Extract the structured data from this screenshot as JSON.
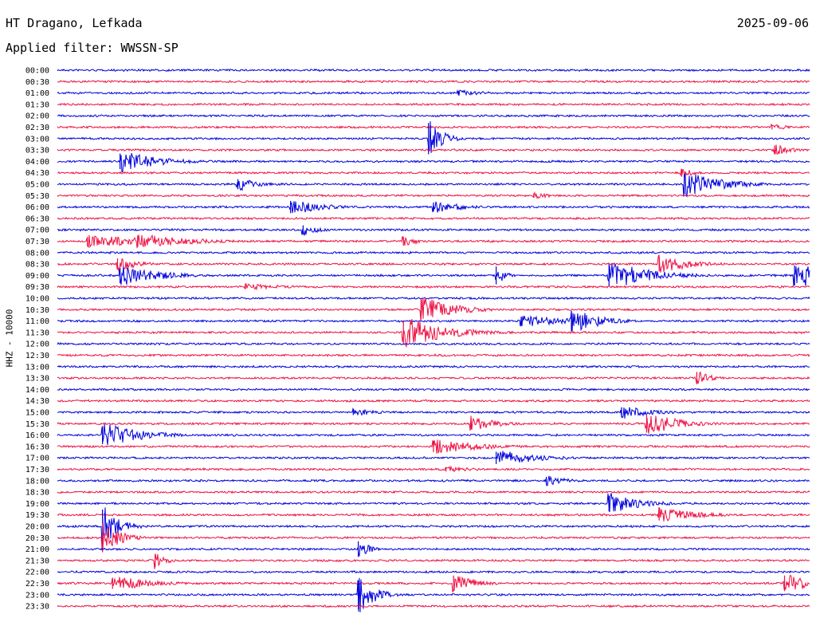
{
  "header": {
    "station": "HT Dragano, Lefkada",
    "date": "2025-09-06",
    "filter": "Applied filter: WWSSN-SP"
  },
  "chart_data": {
    "type": "line",
    "ylabel": "HHZ - 10000",
    "colors": {
      "even": "#0000dd",
      "odd": "#ee1144"
    },
    "rows": [
      "00:00",
      "00:30",
      "01:00",
      "01:30",
      "02:00",
      "02:30",
      "03:00",
      "03:30",
      "04:00",
      "04:30",
      "05:00",
      "05:30",
      "06:00",
      "06:30",
      "07:00",
      "07:30",
      "08:00",
      "08:30",
      "09:00",
      "09:30",
      "10:00",
      "10:30",
      "11:00",
      "11:30",
      "12:00",
      "12:30",
      "13:00",
      "13:30",
      "14:00",
      "14:30",
      "15:00",
      "15:30",
      "16:00",
      "16:30",
      "17:00",
      "17:30",
      "18:00",
      "18:30",
      "19:00",
      "19:30",
      "20:00",
      "20:30",
      "21:00",
      "21:30",
      "22:00",
      "22:30",
      "23:00",
      "23:30"
    ],
    "x_range_minutes": [
      0,
      30
    ],
    "events": [
      {
        "row": "01:00",
        "t": 16.0,
        "amp": 4,
        "dur": 1.2
      },
      {
        "row": "02:30",
        "t": 28.5,
        "amp": 4,
        "dur": 0.8
      },
      {
        "row": "03:00",
        "t": 14.8,
        "amp": 28,
        "dur": 0.5
      },
      {
        "row": "03:30",
        "t": 28.6,
        "amp": 8,
        "dur": 0.6
      },
      {
        "row": "04:00",
        "t": 2.5,
        "amp": 14,
        "dur": 1.5
      },
      {
        "row": "04:30",
        "t": 24.9,
        "amp": 7,
        "dur": 0.5
      },
      {
        "row": "05:00",
        "t": 7.2,
        "amp": 9,
        "dur": 0.8
      },
      {
        "row": "05:00",
        "t": 25.0,
        "amp": 18,
        "dur": 1.4
      },
      {
        "row": "05:30",
        "t": 19.0,
        "amp": 4,
        "dur": 0.8
      },
      {
        "row": "06:00",
        "t": 9.3,
        "amp": 11,
        "dur": 1.2
      },
      {
        "row": "06:00",
        "t": 15.0,
        "amp": 8,
        "dur": 1.2
      },
      {
        "row": "07:00",
        "t": 9.8,
        "amp": 8,
        "dur": 0.6
      },
      {
        "row": "07:30",
        "t": 1.2,
        "amp": 8,
        "dur": 3.0
      },
      {
        "row": "07:30",
        "t": 3.2,
        "amp": 10,
        "dur": 2.0
      },
      {
        "row": "07:30",
        "t": 13.8,
        "amp": 8,
        "dur": 0.5
      },
      {
        "row": "08:30",
        "t": 2.4,
        "amp": 10,
        "dur": 0.8
      },
      {
        "row": "08:30",
        "t": 24.0,
        "amp": 13,
        "dur": 1.2
      },
      {
        "row": "09:00",
        "t": 2.5,
        "amp": 14,
        "dur": 1.5
      },
      {
        "row": "09:00",
        "t": 17.5,
        "amp": 16,
        "dur": 0.3
      },
      {
        "row": "09:00",
        "t": 22.0,
        "amp": 20,
        "dur": 1.5
      },
      {
        "row": "09:00",
        "t": 29.4,
        "amp": 18,
        "dur": 1.5
      },
      {
        "row": "09:30",
        "t": 7.5,
        "amp": 4,
        "dur": 2.0
      },
      {
        "row": "10:30",
        "t": 14.5,
        "amp": 18,
        "dur": 1.2
      },
      {
        "row": "11:00",
        "t": 18.5,
        "amp": 8,
        "dur": 2.0
      },
      {
        "row": "11:00",
        "t": 20.5,
        "amp": 18,
        "dur": 1.0
      },
      {
        "row": "11:30",
        "t": 13.8,
        "amp": 22,
        "dur": 1.5
      },
      {
        "row": "13:30",
        "t": 25.5,
        "amp": 11,
        "dur": 0.5
      },
      {
        "row": "15:00",
        "t": 11.8,
        "amp": 5,
        "dur": 1.0
      },
      {
        "row": "15:00",
        "t": 22.5,
        "amp": 9,
        "dur": 1.2
      },
      {
        "row": "15:30",
        "t": 16.5,
        "amp": 10,
        "dur": 1.0
      },
      {
        "row": "15:30",
        "t": 23.5,
        "amp": 16,
        "dur": 1.2
      },
      {
        "row": "16:00",
        "t": 1.8,
        "amp": 16,
        "dur": 1.5
      },
      {
        "row": "16:30",
        "t": 15.0,
        "amp": 10,
        "dur": 1.8
      },
      {
        "row": "17:00",
        "t": 17.5,
        "amp": 11,
        "dur": 1.5
      },
      {
        "row": "17:30",
        "t": 15.5,
        "amp": 4,
        "dur": 1.2
      },
      {
        "row": "18:00",
        "t": 19.5,
        "amp": 7,
        "dur": 0.8
      },
      {
        "row": "19:00",
        "t": 22.0,
        "amp": 14,
        "dur": 1.2
      },
      {
        "row": "19:30",
        "t": 24.0,
        "amp": 10,
        "dur": 1.5
      },
      {
        "row": "20:00",
        "t": 1.8,
        "amp": 30,
        "dur": 0.6
      },
      {
        "row": "20:30",
        "t": 1.8,
        "amp": 26,
        "dur": 0.6
      },
      {
        "row": "21:00",
        "t": 12.0,
        "amp": 14,
        "dur": 0.4
      },
      {
        "row": "21:30",
        "t": 3.9,
        "amp": 12,
        "dur": 0.4
      },
      {
        "row": "22:30",
        "t": 2.2,
        "amp": 10,
        "dur": 1.5
      },
      {
        "row": "22:30",
        "t": 15.8,
        "amp": 14,
        "dur": 0.8
      },
      {
        "row": "22:30",
        "t": 29.0,
        "amp": 14,
        "dur": 1.0
      },
      {
        "row": "23:00",
        "t": 12.0,
        "amp": 26,
        "dur": 0.6
      }
    ]
  }
}
